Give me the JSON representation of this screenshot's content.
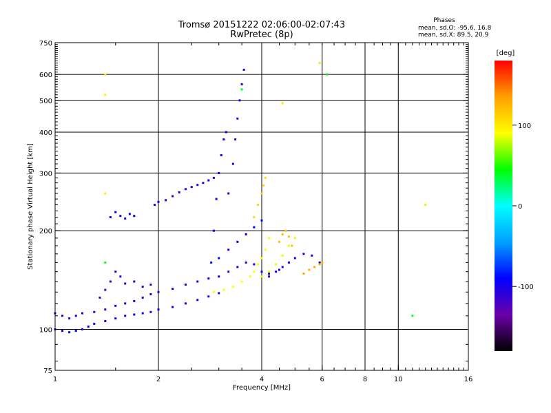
{
  "chart_data": {
    "type": "scatter",
    "title": "Tromsø 20151222 02:06:00-02:07:43",
    "subtitle": "RwPretec (8p)",
    "phase_box": {
      "heading": "Phases",
      "line_o": "mean, sd,O: -95.6, 16.8",
      "line_x": "mean, sd,X:  89.5, 20.9"
    },
    "xlabel": "Frequency [MHz]",
    "ylabel": "Stationary phase Virtual Height [km]",
    "x_scale": "log",
    "y_scale": "log",
    "xlim": [
      1,
      16
    ],
    "ylim": [
      75,
      750
    ],
    "x_ticks": [
      {
        "value": 1,
        "label": "1"
      },
      {
        "value": 2,
        "label": "2"
      },
      {
        "value": 4,
        "label": "4"
      },
      {
        "value": 6,
        "label": "6"
      },
      {
        "value": 8,
        "label": "8"
      },
      {
        "value": 10,
        "label": "10"
      },
      {
        "value": 16,
        "label": "16"
      }
    ],
    "x_grid": [
      2,
      4,
      6,
      8,
      10
    ],
    "y_ticks": [
      {
        "value": 75,
        "label": "75"
      },
      {
        "value": 100,
        "label": "100"
      },
      {
        "value": 200,
        "label": "200"
      },
      {
        "value": 300,
        "label": "300"
      },
      {
        "value": 400,
        "label": "400"
      },
      {
        "value": 500,
        "label": "500"
      },
      {
        "value": 600,
        "label": "600"
      },
      {
        "value": 750,
        "label": "750"
      }
    ],
    "y_grid": [
      100,
      200,
      300,
      400,
      500,
      600
    ],
    "grid": true,
    "colorbar": {
      "label": "[deg]",
      "range": [
        -180,
        180
      ],
      "ticks": [
        {
          "value": 100,
          "label": "100"
        },
        {
          "value": 0,
          "label": "0"
        },
        {
          "value": -100,
          "label": "-100"
        }
      ],
      "colors": [
        "#000000",
        "#6a00a8",
        "#0000ff",
        "#00a0ff",
        "#00ffff",
        "#00ff00",
        "#ffff00",
        "#ffa000",
        "#ff0000"
      ]
    },
    "series": [
      {
        "phase": -100,
        "points": [
          [
            1.0,
            112
          ],
          [
            1.05,
            110
          ],
          [
            1.1,
            108
          ],
          [
            1.15,
            110
          ],
          [
            1.2,
            112
          ],
          [
            1.3,
            113
          ],
          [
            1.4,
            115
          ],
          [
            1.5,
            118
          ],
          [
            1.6,
            120
          ],
          [
            1.7,
            122
          ],
          [
            1.8,
            125
          ],
          [
            1.9,
            128
          ],
          [
            2.0,
            130
          ],
          [
            2.2,
            133
          ],
          [
            2.4,
            137
          ],
          [
            2.6,
            140
          ],
          [
            2.8,
            143
          ],
          [
            3.0,
            145
          ]
        ]
      },
      {
        "phase": -95,
        "points": [
          [
            1.0,
            100
          ],
          [
            1.05,
            99
          ],
          [
            1.1,
            98
          ],
          [
            1.15,
            99
          ],
          [
            1.2,
            100
          ],
          [
            1.25,
            102
          ],
          [
            1.3,
            104
          ],
          [
            1.4,
            106
          ],
          [
            1.5,
            108
          ],
          [
            1.6,
            110
          ],
          [
            1.7,
            111
          ],
          [
            1.8,
            112
          ],
          [
            1.9,
            113
          ],
          [
            2.0,
            115
          ],
          [
            2.2,
            117
          ],
          [
            2.4,
            120
          ],
          [
            2.6,
            123
          ],
          [
            2.8,
            126
          ],
          [
            3.0,
            129
          ]
        ]
      },
      {
        "phase": -110,
        "points": [
          [
            1.35,
            125
          ],
          [
            1.4,
            132
          ],
          [
            1.45,
            140
          ],
          [
            1.5,
            150
          ],
          [
            1.55,
            145
          ],
          [
            1.6,
            138
          ],
          [
            1.7,
            140
          ],
          [
            1.8,
            135
          ],
          [
            1.9,
            137
          ]
        ]
      },
      {
        "phase": -90,
        "points": [
          [
            1.45,
            220
          ],
          [
            1.5,
            228
          ],
          [
            1.55,
            222
          ],
          [
            1.6,
            218
          ],
          [
            1.65,
            225
          ],
          [
            1.7,
            222
          ]
        ]
      },
      {
        "phase": -100,
        "points": [
          [
            1.95,
            240
          ],
          [
            2.0,
            245
          ],
          [
            2.1,
            248
          ],
          [
            2.2,
            255
          ],
          [
            2.3,
            262
          ],
          [
            2.4,
            268
          ],
          [
            2.5,
            272
          ],
          [
            2.6,
            276
          ],
          [
            2.7,
            280
          ],
          [
            2.8,
            285
          ],
          [
            2.9,
            290
          ]
        ]
      },
      {
        "phase": -95,
        "points": [
          [
            2.85,
            160
          ],
          [
            2.9,
            200
          ],
          [
            2.95,
            250
          ],
          [
            3.0,
            300
          ],
          [
            3.05,
            340
          ],
          [
            3.1,
            380
          ],
          [
            3.15,
            400
          ]
        ]
      },
      {
        "phase": -105,
        "points": [
          [
            3.2,
            260
          ],
          [
            3.3,
            320
          ],
          [
            3.35,
            380
          ],
          [
            3.4,
            440
          ],
          [
            3.45,
            500
          ],
          [
            3.5,
            560
          ],
          [
            3.55,
            620
          ]
        ]
      },
      {
        "phase": -90,
        "points": [
          [
            3.0,
            165
          ],
          [
            3.2,
            175
          ],
          [
            3.4,
            185
          ],
          [
            3.6,
            195
          ],
          [
            3.8,
            205
          ],
          [
            4.0,
            215
          ]
        ]
      },
      {
        "phase": -100,
        "points": [
          [
            3.2,
            150
          ],
          [
            3.4,
            155
          ],
          [
            3.6,
            160
          ],
          [
            3.8,
            158
          ],
          [
            4.0,
            150
          ],
          [
            4.2,
            148
          ],
          [
            4.4,
            150
          ],
          [
            4.6,
            155
          ]
        ]
      },
      {
        "phase": 90,
        "points": [
          [
            2.9,
            130
          ],
          [
            3.1,
            132
          ],
          [
            3.3,
            135
          ],
          [
            3.5,
            140
          ],
          [
            3.7,
            145
          ],
          [
            3.8,
            150
          ],
          [
            3.9,
            158
          ],
          [
            4.0,
            165
          ],
          [
            4.1,
            175
          ],
          [
            4.2,
            190
          ]
        ]
      },
      {
        "phase": 110,
        "points": [
          [
            3.8,
            220
          ],
          [
            3.9,
            240
          ],
          [
            4.0,
            260
          ],
          [
            4.05,
            275
          ],
          [
            4.1,
            290
          ]
        ]
      },
      {
        "phase": 85,
        "points": [
          [
            4.0,
            145
          ],
          [
            4.2,
            150
          ],
          [
            4.4,
            158
          ],
          [
            4.6,
            168
          ],
          [
            4.8,
            180
          ],
          [
            5.0,
            190
          ]
        ]
      },
      {
        "phase": 120,
        "points": [
          [
            4.5,
            185
          ],
          [
            4.6,
            195
          ],
          [
            4.7,
            200
          ],
          [
            4.8,
            192
          ],
          [
            4.9,
            180
          ]
        ]
      },
      {
        "phase": -100,
        "points": [
          [
            4.2,
            145
          ],
          [
            4.5,
            152
          ],
          [
            4.8,
            160
          ],
          [
            5.0,
            165
          ],
          [
            5.3,
            170
          ],
          [
            5.6,
            168
          ],
          [
            5.9,
            160
          ]
        ]
      },
      {
        "phase": 130,
        "points": [
          [
            5.3,
            148
          ],
          [
            5.5,
            152
          ],
          [
            5.7,
            155
          ],
          [
            5.9,
            158
          ],
          [
            6.0,
            160
          ]
        ]
      },
      {
        "phase": 40,
        "points": [
          [
            1.4,
            160
          ],
          [
            3.5,
            540
          ],
          [
            6.2,
            600
          ],
          [
            11.0,
            110
          ]
        ]
      },
      {
        "phase": 100,
        "points": [
          [
            1.4,
            600
          ],
          [
            1.4,
            520
          ],
          [
            5.9,
            650
          ],
          [
            4.6,
            490
          ],
          [
            12.0,
            240
          ],
          [
            1.4,
            260
          ]
        ]
      }
    ]
  }
}
